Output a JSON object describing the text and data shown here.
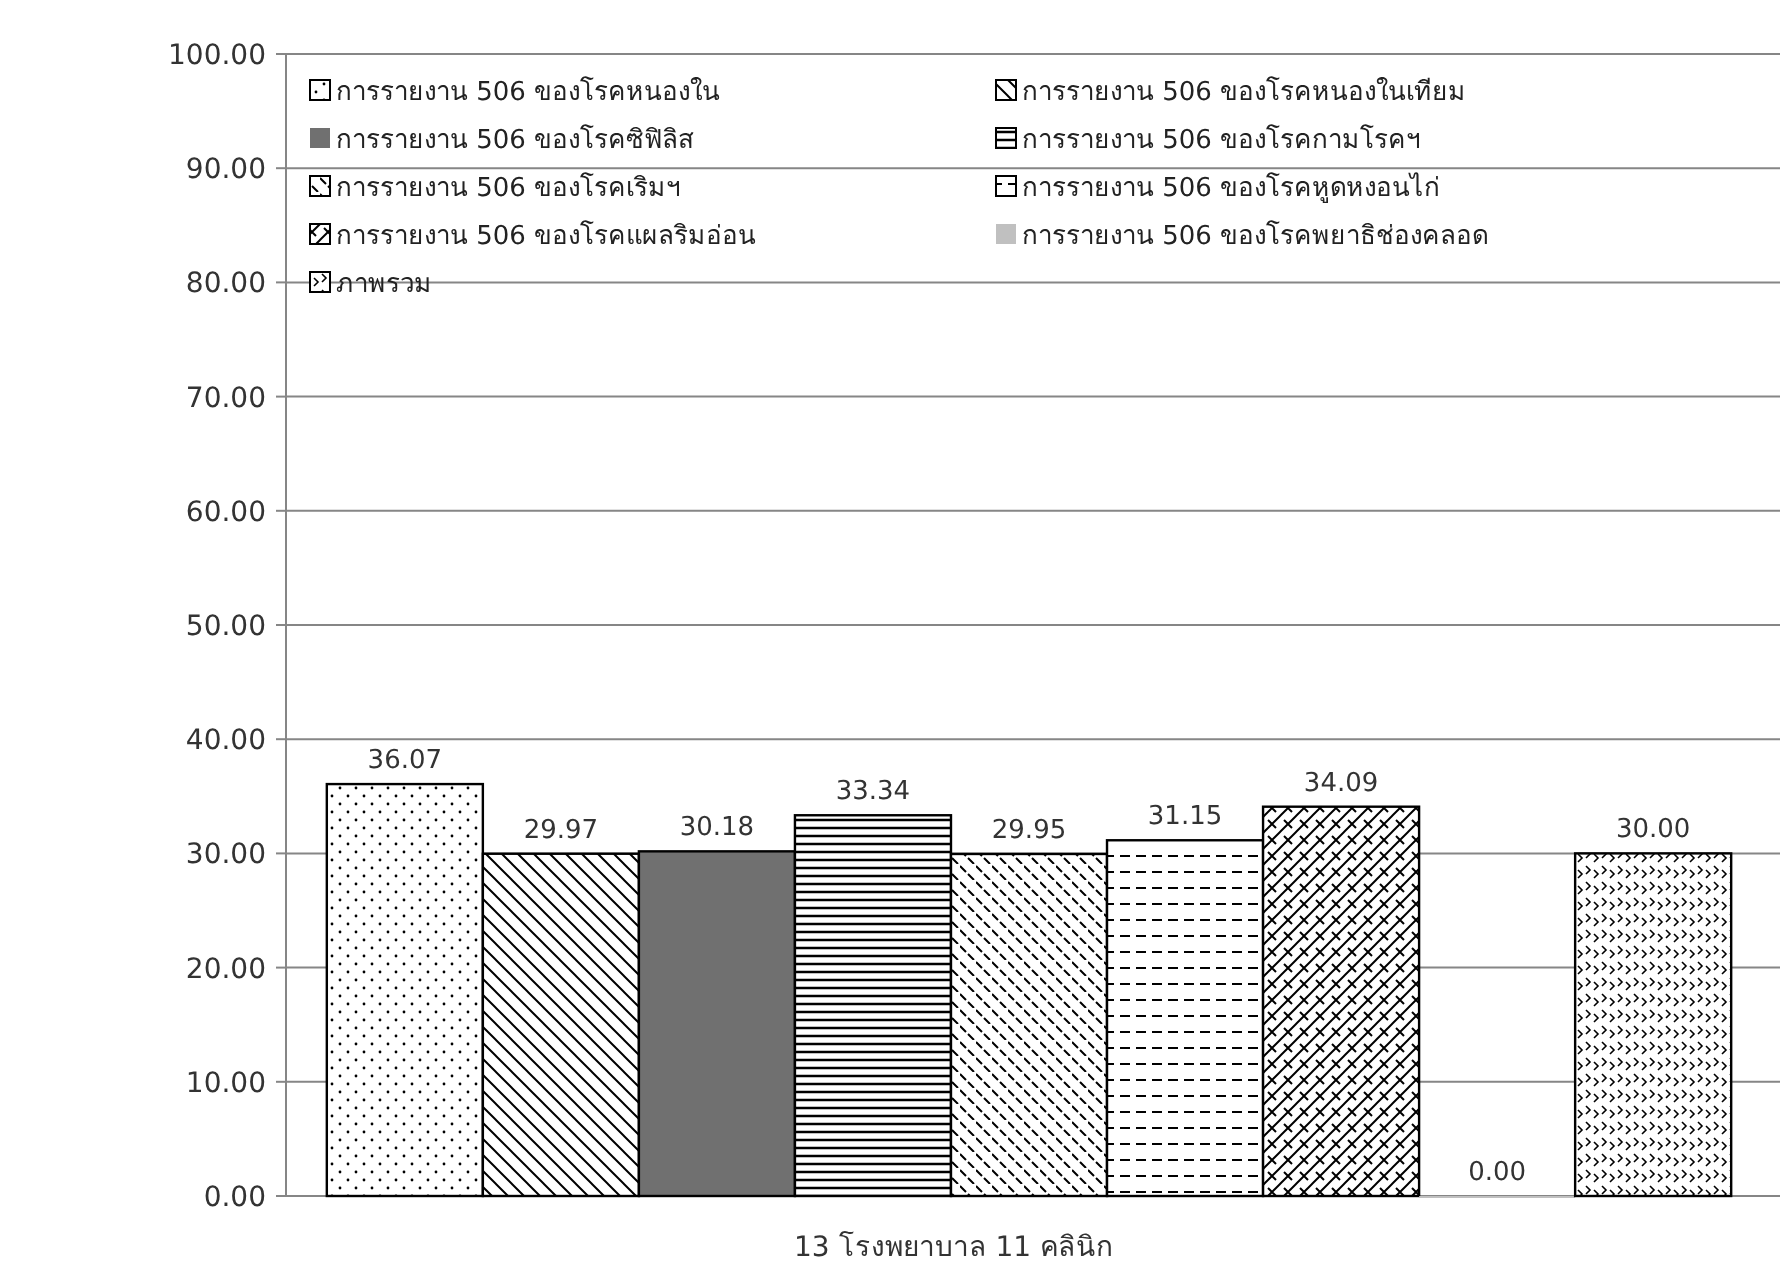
{
  "chart_data": {
    "type": "bar",
    "categories": [
      "13 โรงพยาบาล 11 คลินิก"
    ],
    "series": [
      {
        "name": "การรายงาน 506 ของโรคหนองใน",
        "color": "#000000",
        "values": [
          36.07
        ],
        "value_labels": [
          "36.07"
        ]
      },
      {
        "name": "การรายงาน 506 ของโรคหนองในเทียม",
        "color": "#000000",
        "values": [
          29.97
        ],
        "value_labels": [
          "29.97"
        ]
      },
      {
        "name": "การรายงาน 506 ของโรคซิฟิลิส",
        "color": "#707070",
        "values": [
          30.18
        ],
        "value_labels": [
          "30.18"
        ]
      },
      {
        "name": "การรายงาน 506 ของโรคกามโรคฯ",
        "color": "#000000",
        "values": [
          33.34
        ],
        "value_labels": [
          "33.34"
        ]
      },
      {
        "name": "การรายงาน 506 ของโรคเริมฯ",
        "color": "#000000",
        "values": [
          29.95
        ],
        "value_labels": [
          "29.95"
        ]
      },
      {
        "name": "การรายงาน 506 ของโรคหูดหงอนไก่",
        "color": "#000000",
        "values": [
          31.15
        ],
        "value_labels": [
          "31.15"
        ]
      },
      {
        "name": "การรายงาน 506 ของโรคแผลริมอ่อน",
        "color": "#000000",
        "values": [
          34.09
        ],
        "value_labels": [
          "34.09"
        ]
      },
      {
        "name": "การรายงาน 506 ของโรคพยาธิช่องคลอด",
        "color": "#c0c0c0",
        "values": [
          0
        ],
        "value_labels": [
          "0.00"
        ]
      },
      {
        "name": "ภาพรวม",
        "color": "#000000",
        "values": [
          30
        ],
        "value_labels": [
          "30.00"
        ]
      }
    ],
    "ylim": [
      0,
      100
    ],
    "yticks": [
      {
        "value": 0,
        "label": "0.00"
      },
      {
        "value": 10,
        "label": "10.00"
      },
      {
        "value": 20,
        "label": "20.00"
      },
      {
        "value": 30,
        "label": "30.00"
      },
      {
        "value": 40,
        "label": "40.00"
      },
      {
        "value": 50,
        "label": "50.00"
      },
      {
        "value": 60,
        "label": "60.00"
      },
      {
        "value": 70,
        "label": "70.00"
      },
      {
        "value": 80,
        "label": "80.00"
      },
      {
        "value": 90,
        "label": "90.00"
      },
      {
        "value": 100,
        "label": "100.00"
      }
    ],
    "grid": "y",
    "legend": "top"
  }
}
